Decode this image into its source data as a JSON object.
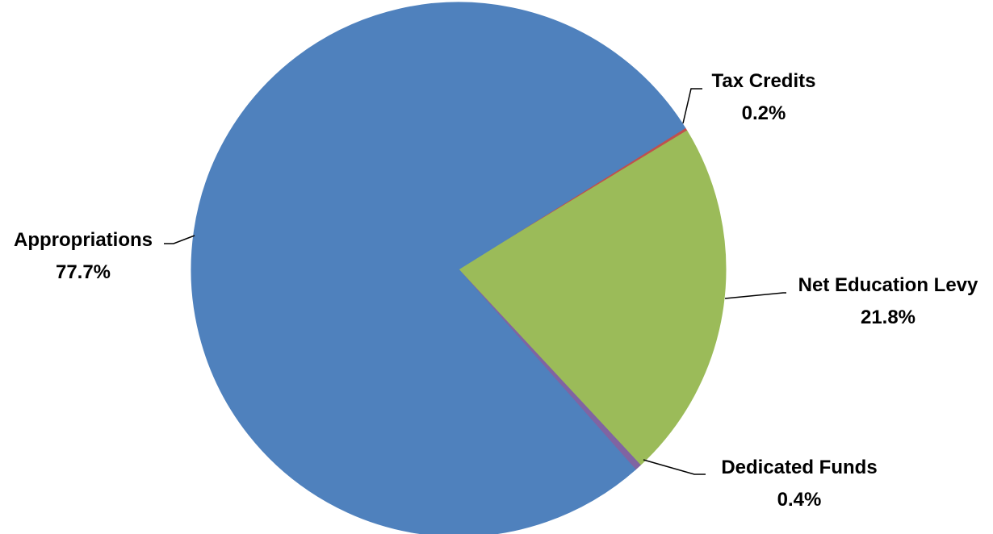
{
  "chart_data": {
    "type": "pie",
    "title": "",
    "start_angle_deg": 32,
    "slices": [
      {
        "label": "Tax Credits",
        "value": 0.2,
        "display": "0.2%",
        "color": "#C0504D"
      },
      {
        "label": "Net Education Levy",
        "value": 21.8,
        "display": "21.8%",
        "color": "#9BBB59"
      },
      {
        "label": "Dedicated Funds",
        "value": 0.4,
        "display": "0.4%",
        "color": "#8064A2"
      },
      {
        "label": "Appropriations",
        "value": 77.7,
        "display": "77.7%",
        "color": "#4F81BD"
      }
    ],
    "legend": "none",
    "data_labels": "outside with leader lines"
  }
}
